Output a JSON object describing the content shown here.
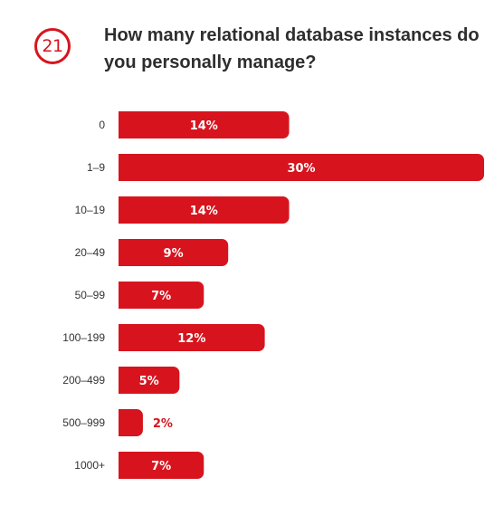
{
  "question_number": "21",
  "chart_data": {
    "type": "bar",
    "orientation": "horizontal",
    "title": "How many relational database instances do you personally manage?",
    "categories": [
      "0",
      "1–9",
      "10–19",
      "20–49",
      "50–99",
      "100–199",
      "200–499",
      "500–999",
      "1000+"
    ],
    "values": [
      14,
      30,
      14,
      9,
      7,
      12,
      5,
      2,
      7
    ],
    "value_labels": [
      "14%",
      "30%",
      "14%",
      "9%",
      "7%",
      "12%",
      "5%",
      "2%",
      "7%"
    ],
    "unit": "%",
    "xlim": [
      0,
      30
    ],
    "grid": false,
    "legend": "none",
    "bar_color": "#d7141e",
    "label_color_inside": "#ffffff",
    "label_color_outside": "#d7141e"
  }
}
